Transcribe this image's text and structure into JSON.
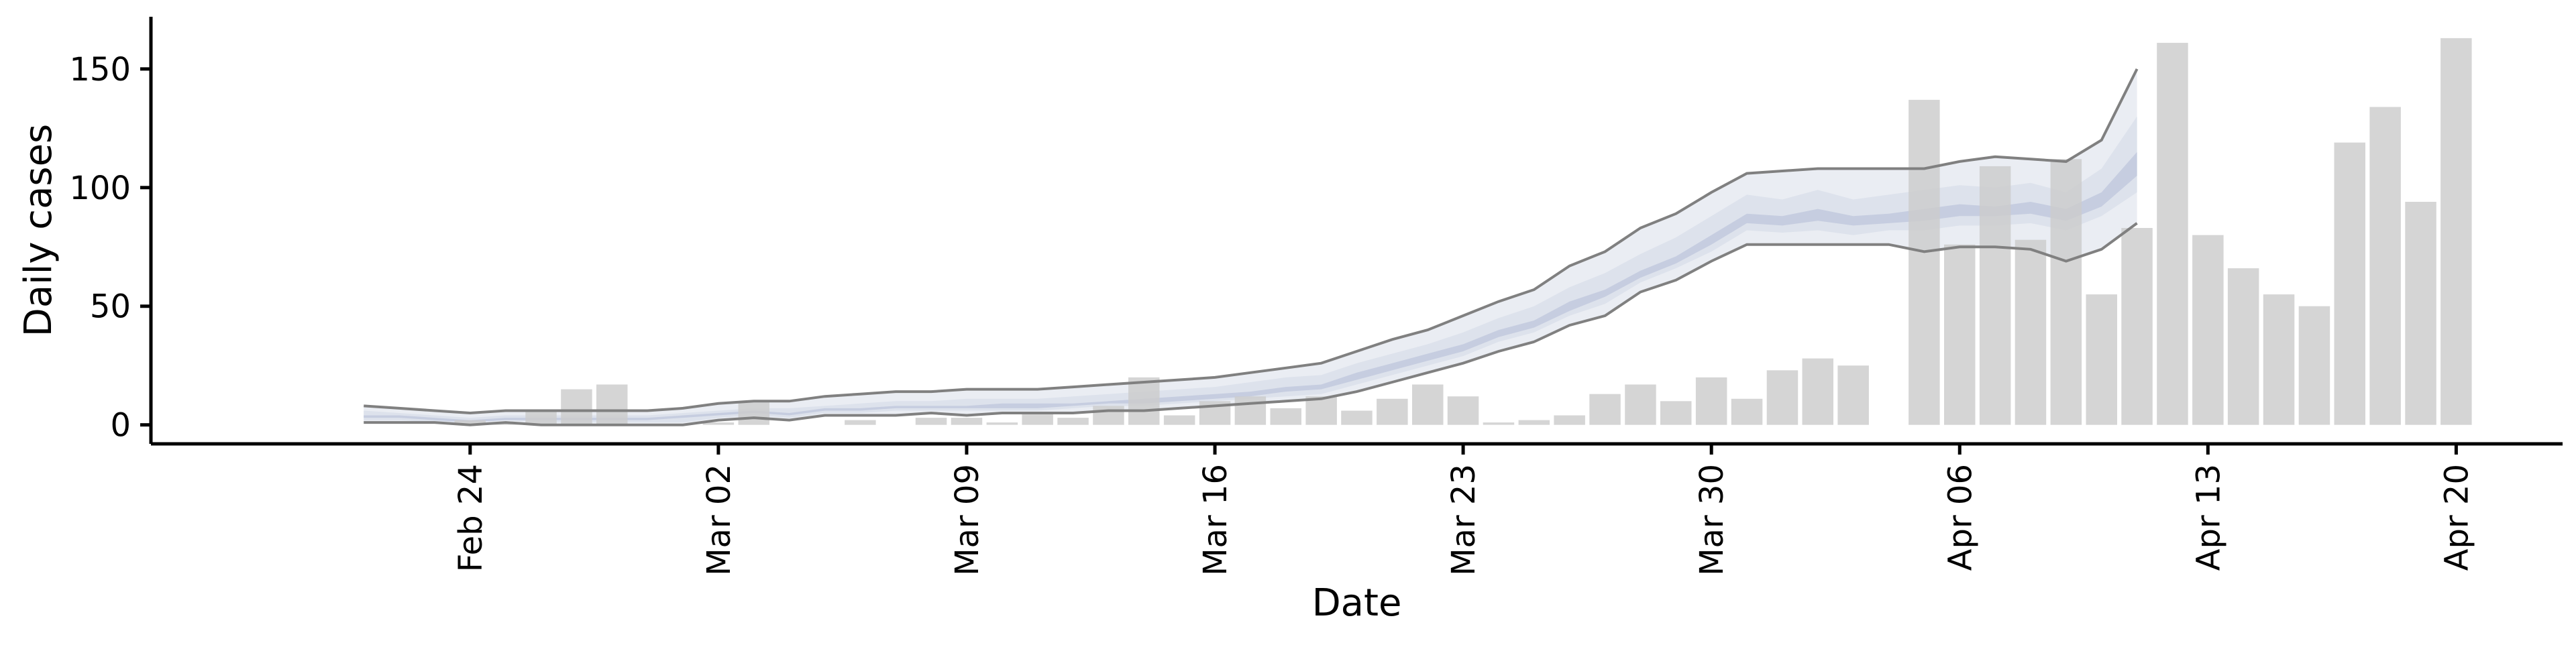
{
  "chart_data": {
    "type": "bar",
    "xlabel": "Date",
    "ylabel": "Daily cases",
    "x_ticks": [
      "Feb 24",
      "Mar 02",
      "Mar 09",
      "Mar 16",
      "Mar 23",
      "Mar 30",
      "Apr 06",
      "Apr 13",
      "Apr 20"
    ],
    "y_ticks": [
      0,
      50,
      100,
      150
    ],
    "ylim": [
      -8,
      172
    ],
    "xlim": [
      "2020-02-15",
      "2020-04-23"
    ],
    "grid": false,
    "bars": {
      "dates": [
        "2020-02-21",
        "2020-02-22",
        "2020-02-23",
        "2020-02-24",
        "2020-02-25",
        "2020-02-26",
        "2020-02-27",
        "2020-02-28",
        "2020-02-29",
        "2020-03-01",
        "2020-03-02",
        "2020-03-03",
        "2020-03-04",
        "2020-03-05",
        "2020-03-06",
        "2020-03-07",
        "2020-03-08",
        "2020-03-09",
        "2020-03-10",
        "2020-03-11",
        "2020-03-12",
        "2020-03-13",
        "2020-03-14",
        "2020-03-15",
        "2020-03-16",
        "2020-03-17",
        "2020-03-18",
        "2020-03-19",
        "2020-03-20",
        "2020-03-21",
        "2020-03-22",
        "2020-03-23",
        "2020-03-24",
        "2020-03-25",
        "2020-03-26",
        "2020-03-27",
        "2020-03-28",
        "2020-03-29",
        "2020-03-30",
        "2020-03-31",
        "2020-04-01",
        "2020-04-02",
        "2020-04-03",
        "2020-04-04",
        "2020-04-05",
        "2020-04-06",
        "2020-04-07",
        "2020-04-08",
        "2020-04-09",
        "2020-04-10",
        "2020-04-11",
        "2020-04-12",
        "2020-04-13",
        "2020-04-14",
        "2020-04-15",
        "2020-04-16",
        "2020-04-17",
        "2020-04-18",
        "2020-04-19",
        "2020-04-20"
      ],
      "values": [
        0,
        0,
        0,
        2,
        1,
        6,
        15,
        17,
        0,
        0,
        1,
        10,
        0,
        0,
        2,
        0,
        3,
        3,
        1,
        5,
        3,
        8,
        20,
        4,
        10,
        12,
        7,
        12,
        6,
        11,
        17,
        12,
        1,
        2,
        4,
        13,
        17,
        10,
        20,
        11,
        23,
        28,
        25,
        0,
        137,
        76,
        109,
        78,
        112,
        55,
        83,
        161,
        80,
        66,
        55,
        50,
        119,
        134,
        94,
        163
      ]
    },
    "projection": {
      "dates": [
        "2020-02-21",
        "2020-02-22",
        "2020-02-23",
        "2020-02-24",
        "2020-02-25",
        "2020-02-26",
        "2020-02-27",
        "2020-02-28",
        "2020-02-29",
        "2020-03-01",
        "2020-03-02",
        "2020-03-03",
        "2020-03-04",
        "2020-03-05",
        "2020-03-06",
        "2020-03-07",
        "2020-03-08",
        "2020-03-09",
        "2020-03-10",
        "2020-03-11",
        "2020-03-12",
        "2020-03-13",
        "2020-03-14",
        "2020-03-15",
        "2020-03-16",
        "2020-03-17",
        "2020-03-18",
        "2020-03-19",
        "2020-03-20",
        "2020-03-21",
        "2020-03-22",
        "2020-03-23",
        "2020-03-24",
        "2020-03-25",
        "2020-03-26",
        "2020-03-27",
        "2020-03-28",
        "2020-03-29",
        "2020-03-30",
        "2020-03-31",
        "2020-04-01",
        "2020-04-02",
        "2020-04-03",
        "2020-04-04",
        "2020-04-05",
        "2020-04-06",
        "2020-04-07",
        "2020-04-08",
        "2020-04-09",
        "2020-04-10",
        "2020-04-11"
      ],
      "outer_upper": [
        8,
        7,
        6,
        5,
        6,
        6,
        6,
        6,
        6,
        7,
        9,
        10,
        10,
        12,
        13,
        14,
        14,
        15,
        15,
        15,
        16,
        17,
        18,
        19,
        20,
        22,
        24,
        26,
        31,
        36,
        40,
        46,
        52,
        57,
        67,
        73,
        83,
        89,
        98,
        106,
        107,
        108,
        108,
        108,
        108,
        111,
        113,
        112,
        111,
        120,
        150
      ],
      "outer_lower": [
        1,
        1,
        1,
        0,
        1,
        0,
        0,
        0,
        0,
        0,
        2,
        3,
        2,
        4,
        4,
        4,
        5,
        4,
        5,
        5,
        5,
        6,
        6,
        7,
        8,
        9,
        10,
        11,
        14,
        18,
        22,
        26,
        31,
        35,
        42,
        46,
        56,
        61,
        69,
        76,
        76,
        76,
        76,
        76,
        73,
        75,
        75,
        74,
        69,
        74,
        85
      ],
      "mid_upper": [
        6,
        5,
        4,
        3,
        4,
        4,
        4,
        4,
        4,
        5,
        6,
        7,
        7,
        8,
        9,
        10,
        10,
        11,
        11,
        11,
        12,
        13,
        14,
        15,
        16,
        18,
        20,
        21,
        26,
        30,
        34,
        39,
        45,
        50,
        58,
        64,
        72,
        79,
        88,
        97,
        95,
        99,
        95,
        97,
        99,
        101,
        100,
        102,
        98,
        108,
        130
      ],
      "mid_lower": [
        2,
        2,
        1,
        1,
        2,
        1,
        1,
        1,
        1,
        1,
        3,
        4,
        3,
        5,
        5,
        6,
        6,
        6,
        6,
        6,
        7,
        8,
        8,
        9,
        10,
        11,
        12,
        13,
        17,
        21,
        25,
        29,
        35,
        39,
        46,
        51,
        60,
        66,
        73,
        82,
        81,
        82,
        80,
        82,
        82,
        84,
        84,
        85,
        82,
        88,
        98
      ],
      "inner_upper": [
        4,
        4,
        3,
        2,
        3,
        3,
        3,
        3,
        3,
        4,
        5,
        6,
        5,
        7,
        7,
        8,
        8,
        8,
        9,
        9,
        9,
        10,
        11,
        12,
        13,
        14,
        16,
        17,
        22,
        26,
        30,
        34,
        40,
        44,
        52,
        57,
        65,
        71,
        80,
        89,
        88,
        91,
        88,
        89,
        91,
        93,
        92,
        94,
        91,
        98,
        115
      ],
      "inner_lower": [
        3,
        3,
        2,
        1,
        2,
        2,
        2,
        2,
        2,
        3,
        4,
        5,
        4,
        6,
        6,
        7,
        7,
        7,
        7,
        7,
        8,
        9,
        9,
        10,
        11,
        12,
        14,
        15,
        19,
        23,
        27,
        31,
        37,
        41,
        48,
        54,
        62,
        68,
        76,
        85,
        84,
        86,
        84,
        85,
        86,
        88,
        88,
        89,
        86,
        92,
        105
      ]
    },
    "colors": {
      "bar": "#cccccc",
      "outer_band": "#eaedf3",
      "mid_band": "#dde2ec",
      "inner_band": "#c6cde0",
      "bound_line": "#808080",
      "axis": "#000000"
    }
  }
}
